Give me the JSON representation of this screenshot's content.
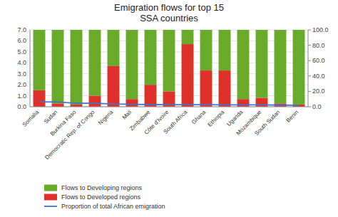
{
  "chart_data": {
    "type": "bar",
    "title": "Emigration flows for top 15\nSSA countries",
    "categories": [
      "Somalia",
      "Sudan",
      "Burkina Faso",
      "Democratic Rep. of Congo",
      "Nigeria",
      "Mali",
      "Zimbabwe",
      "Côte d'Ivoire",
      "South Africa",
      "Ghana",
      "Ethiopia",
      "Uganda",
      "Mozambique",
      "South Sudan",
      "Benin"
    ],
    "stacked": true,
    "series": [
      {
        "name": "Flows to Developed regions",
        "type": "bar",
        "color": "#e0302a",
        "values": [
          1.5,
          0.3,
          0.2,
          1.0,
          3.7,
          0.7,
          2.0,
          1.4,
          5.7,
          3.3,
          3.3,
          0.7,
          0.8,
          0.3,
          0.2
        ]
      },
      {
        "name": "Flows to Developing regions",
        "type": "bar",
        "color": "#6aaa2a",
        "values": [
          5.5,
          6.7,
          6.8,
          6.0,
          3.3,
          6.3,
          5.0,
          5.6,
          1.3,
          3.7,
          3.7,
          6.3,
          6.2,
          6.7,
          6.8
        ]
      },
      {
        "name": "Proportion of total African emigration",
        "type": "line",
        "axis": "y2",
        "color": "#4472c4",
        "values": [
          6.3,
          6.1,
          4.5,
          4.5,
          3.5,
          3.2,
          2.8,
          2.75,
          2.7,
          2.6,
          2.5,
          2.4,
          2.35,
          2.1,
          2.0
        ]
      }
    ],
    "ylim": [
      0.0,
      7.0
    ],
    "yticks": [
      {
        "value": 0,
        "label": "0.0"
      },
      {
        "value": 1,
        "label": "1.0"
      },
      {
        "value": 2,
        "label": "2.0"
      },
      {
        "value": 3,
        "label": "3.0"
      },
      {
        "value": 4,
        "label": "4.0"
      },
      {
        "value": 5,
        "label": "5.0"
      },
      {
        "value": 6,
        "label": "6.0"
      },
      {
        "value": 7,
        "label": "7.0"
      }
    ],
    "y2lim": [
      0.0,
      100.0
    ],
    "y2ticks": [
      {
        "value": 0,
        "label": "0.0"
      },
      {
        "value": 20,
        "label": "20.0"
      },
      {
        "value": 40,
        "label": "40.0"
      },
      {
        "value": 60,
        "label": "60.0"
      },
      {
        "value": 80,
        "label": "80.0"
      },
      {
        "value": 100,
        "label": "100.0"
      }
    ],
    "grid": true,
    "legend": "lower left"
  }
}
